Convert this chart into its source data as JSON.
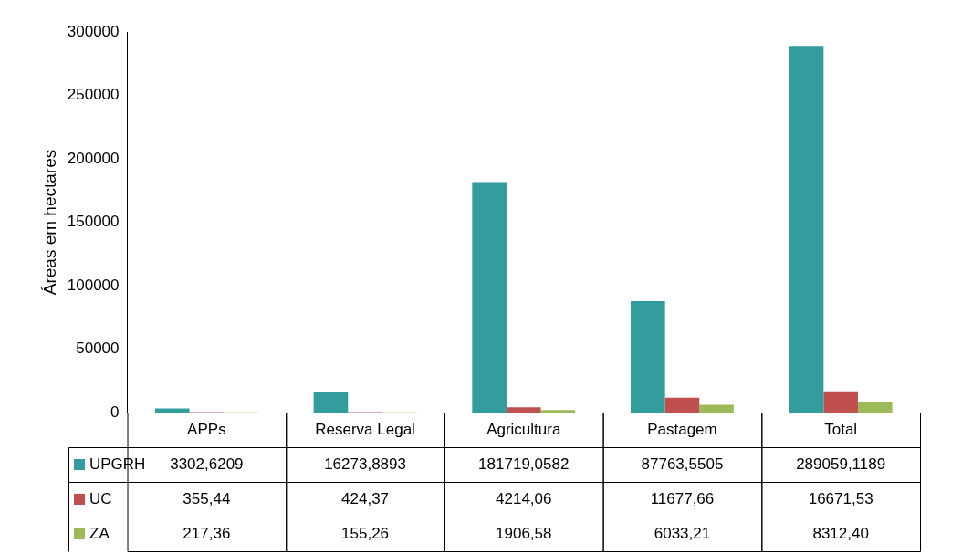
{
  "chart_data": {
    "type": "bar",
    "ylabel": "Áreas em hectares",
    "categories": [
      "APPs",
      "Reserva Legal",
      "Agricultura",
      "Pastagem",
      "Total"
    ],
    "ylim": [
      0,
      300000
    ],
    "yticks": [
      0,
      50000,
      100000,
      150000,
      200000,
      250000,
      300000
    ],
    "grid": false,
    "legend": "bottom left",
    "series": [
      {
        "name": "UPGRH",
        "color": "#339c9c",
        "values": [
          3302.6209,
          16273.8893,
          181719.0582,
          87763.5505,
          289059.1189
        ],
        "value_labels": [
          "3302,6209",
          "16273,8893",
          "181719,0582",
          "87763,5505",
          "289059,1189"
        ]
      },
      {
        "name": "UC",
        "color": "#c0504d",
        "values": [
          355.44,
          424.37,
          4214.06,
          11677.66,
          16671.53
        ],
        "value_labels": [
          "355,44",
          "424,37",
          "4214,06",
          "11677,66",
          "16671,53"
        ]
      },
      {
        "name": "ZA",
        "color": "#9bbb59",
        "values": [
          217.36,
          155.26,
          1906.58,
          6033.21,
          8312.4
        ],
        "value_labels": [
          "217,36",
          "155,26",
          "1906,58",
          "6033,21",
          "8312,40"
        ]
      }
    ]
  }
}
